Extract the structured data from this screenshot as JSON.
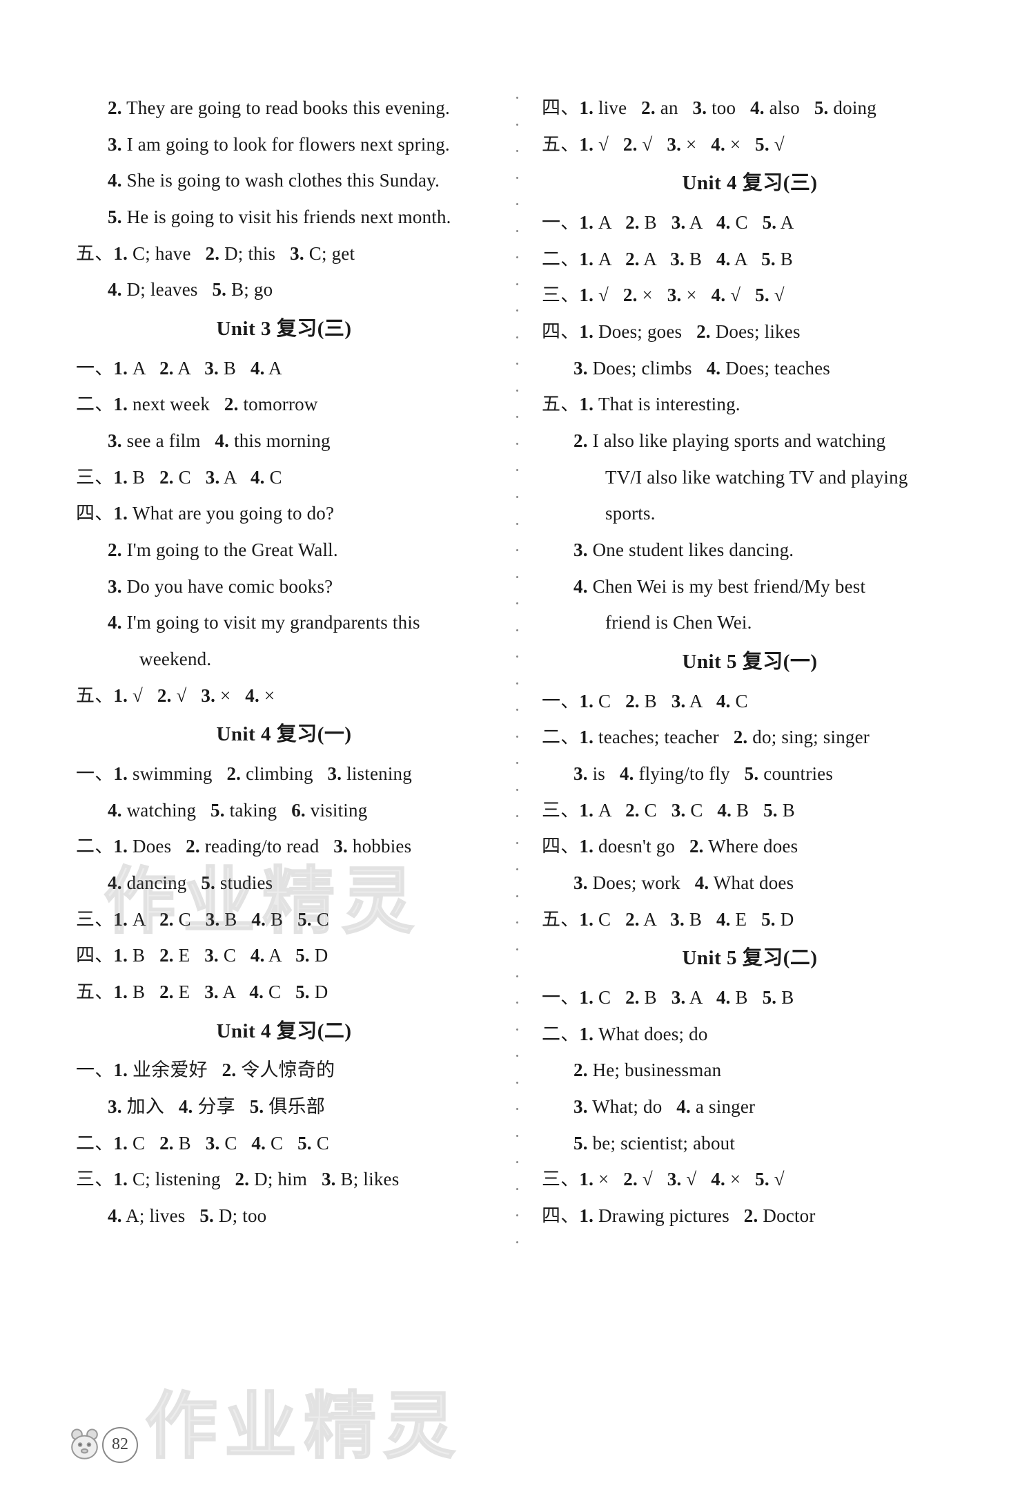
{
  "left": [
    {
      "cls": "line indent1",
      "t": "2. They are going to read books this evening."
    },
    {
      "cls": "line indent1",
      "t": "3. I am going to look for flowers next spring."
    },
    {
      "cls": "line indent1",
      "t": "4. She is going to wash clothes this Sunday."
    },
    {
      "cls": "line indent1",
      "t": "5. He is going to visit his friends next month."
    },
    {
      "cls": "line",
      "t": "五、1. C; have   2. D; this   3. C; get"
    },
    {
      "cls": "line indent1",
      "t": "4. D; leaves   5. B; go"
    },
    {
      "cls": "heading",
      "t": "Unit 3 复习(三)"
    },
    {
      "cls": "line",
      "t": "一、1. A   2. A   3. B   4. A"
    },
    {
      "cls": "line",
      "t": "二、1. next week   2. tomorrow"
    },
    {
      "cls": "line indent1",
      "t": "3. see a film   4. this morning"
    },
    {
      "cls": "line",
      "t": "三、1. B   2. C   3. A   4. C"
    },
    {
      "cls": "line",
      "t": "四、1. What are you going to do?"
    },
    {
      "cls": "line indent1",
      "t": "2. I'm going to the Great Wall."
    },
    {
      "cls": "line indent1",
      "t": "3. Do you have comic books?"
    },
    {
      "cls": "line indent1",
      "t": "4. I'm going to visit my grandparents this"
    },
    {
      "cls": "line indent2",
      "t": "weekend."
    },
    {
      "cls": "line",
      "t": "五、1. √   2. √   3. ×   4. ×"
    },
    {
      "cls": "heading",
      "t": "Unit 4 复习(一)"
    },
    {
      "cls": "line",
      "t": "一、1. swimming   2. climbing   3. listening"
    },
    {
      "cls": "line indent1",
      "t": "4. watching   5. taking   6. visiting"
    },
    {
      "cls": "line",
      "t": "二、1. Does   2. reading/to read   3. hobbies"
    },
    {
      "cls": "line indent1",
      "t": "4. dancing   5. studies"
    },
    {
      "cls": "line",
      "t": "三、1. A   2. C   3. B   4. B   5. C"
    },
    {
      "cls": "line",
      "t": "四、1. B   2. E   3. C   4. A   5. D"
    },
    {
      "cls": "line",
      "t": "五、1. B   2. E   3. A   4. C   5. D"
    },
    {
      "cls": "heading",
      "t": "Unit 4 复习(二)"
    },
    {
      "cls": "line",
      "t": "一、1. 业余爱好   2. 令人惊奇的"
    },
    {
      "cls": "line indent1",
      "t": "3. 加入   4. 分享   5. 俱乐部"
    },
    {
      "cls": "line",
      "t": "二、1. C   2. B   3. C   4. C   5. C"
    },
    {
      "cls": "line",
      "t": "三、1. C; listening   2. D; him   3. B; likes"
    },
    {
      "cls": "line indent1",
      "t": "4. A; lives   5. D; too"
    }
  ],
  "right": [
    {
      "cls": "line",
      "t": "四、1. live   2. an   3. too   4. also   5. doing"
    },
    {
      "cls": "line",
      "t": "五、1. √   2. √   3. ×   4. ×   5. √"
    },
    {
      "cls": "heading",
      "t": "Unit 4 复习(三)"
    },
    {
      "cls": "line",
      "t": "一、1. A   2. B   3. A   4. C   5. A"
    },
    {
      "cls": "line",
      "t": "二、1. A   2. A   3. B   4. A   5. B"
    },
    {
      "cls": "line",
      "t": "三、1. √   2. ×   3. ×   4. √   5. √"
    },
    {
      "cls": "line",
      "t": "四、1. Does; goes   2. Does; likes"
    },
    {
      "cls": "line indent1",
      "t": "3. Does; climbs   4. Does; teaches"
    },
    {
      "cls": "line",
      "t": "五、1. That is interesting."
    },
    {
      "cls": "line indent1",
      "t": "2. I also like playing sports and watching"
    },
    {
      "cls": "line indent2",
      "t": "TV/I also like watching TV and playing"
    },
    {
      "cls": "line indent2",
      "t": "sports."
    },
    {
      "cls": "line indent1",
      "t": "3. One student likes dancing."
    },
    {
      "cls": "line indent1",
      "t": "4. Chen Wei is my best friend/My best"
    },
    {
      "cls": "line indent2",
      "t": "friend is Chen Wei."
    },
    {
      "cls": "heading",
      "t": "Unit 5 复习(一)"
    },
    {
      "cls": "line",
      "t": "一、1. C   2. B   3. A   4. C"
    },
    {
      "cls": "line",
      "t": "二、1. teaches; teacher   2. do; sing; singer"
    },
    {
      "cls": "line indent1",
      "t": "3. is   4. flying/to fly   5. countries"
    },
    {
      "cls": "line",
      "t": "三、1. A   2. C   3. C   4. B   5. B"
    },
    {
      "cls": "line",
      "t": "四、1. doesn't go   2. Where does"
    },
    {
      "cls": "line indent1",
      "t": "3. Does; work   4. What does"
    },
    {
      "cls": "line",
      "t": "五、1. C   2. A   3. B   4. E   5. D"
    },
    {
      "cls": "heading",
      "t": "Unit 5 复习(二)"
    },
    {
      "cls": "line",
      "t": "一、1. C   2. B   3. A   4. B   5. B"
    },
    {
      "cls": "line",
      "t": "二、1. What does; do"
    },
    {
      "cls": "line indent1",
      "t": "2. He; businessman"
    },
    {
      "cls": "line indent1",
      "t": "3. What; do   4. a singer"
    },
    {
      "cls": "line indent1",
      "t": "5. be; scientist; about"
    },
    {
      "cls": "line",
      "t": "三、1. ×   2. √   3. √   4. ×   5. √"
    },
    {
      "cls": "line",
      "t": "四、1. Drawing pictures   2. Doctor"
    }
  ],
  "watermark": "作业精灵",
  "pagenum": "82",
  "divider_dots": 44
}
